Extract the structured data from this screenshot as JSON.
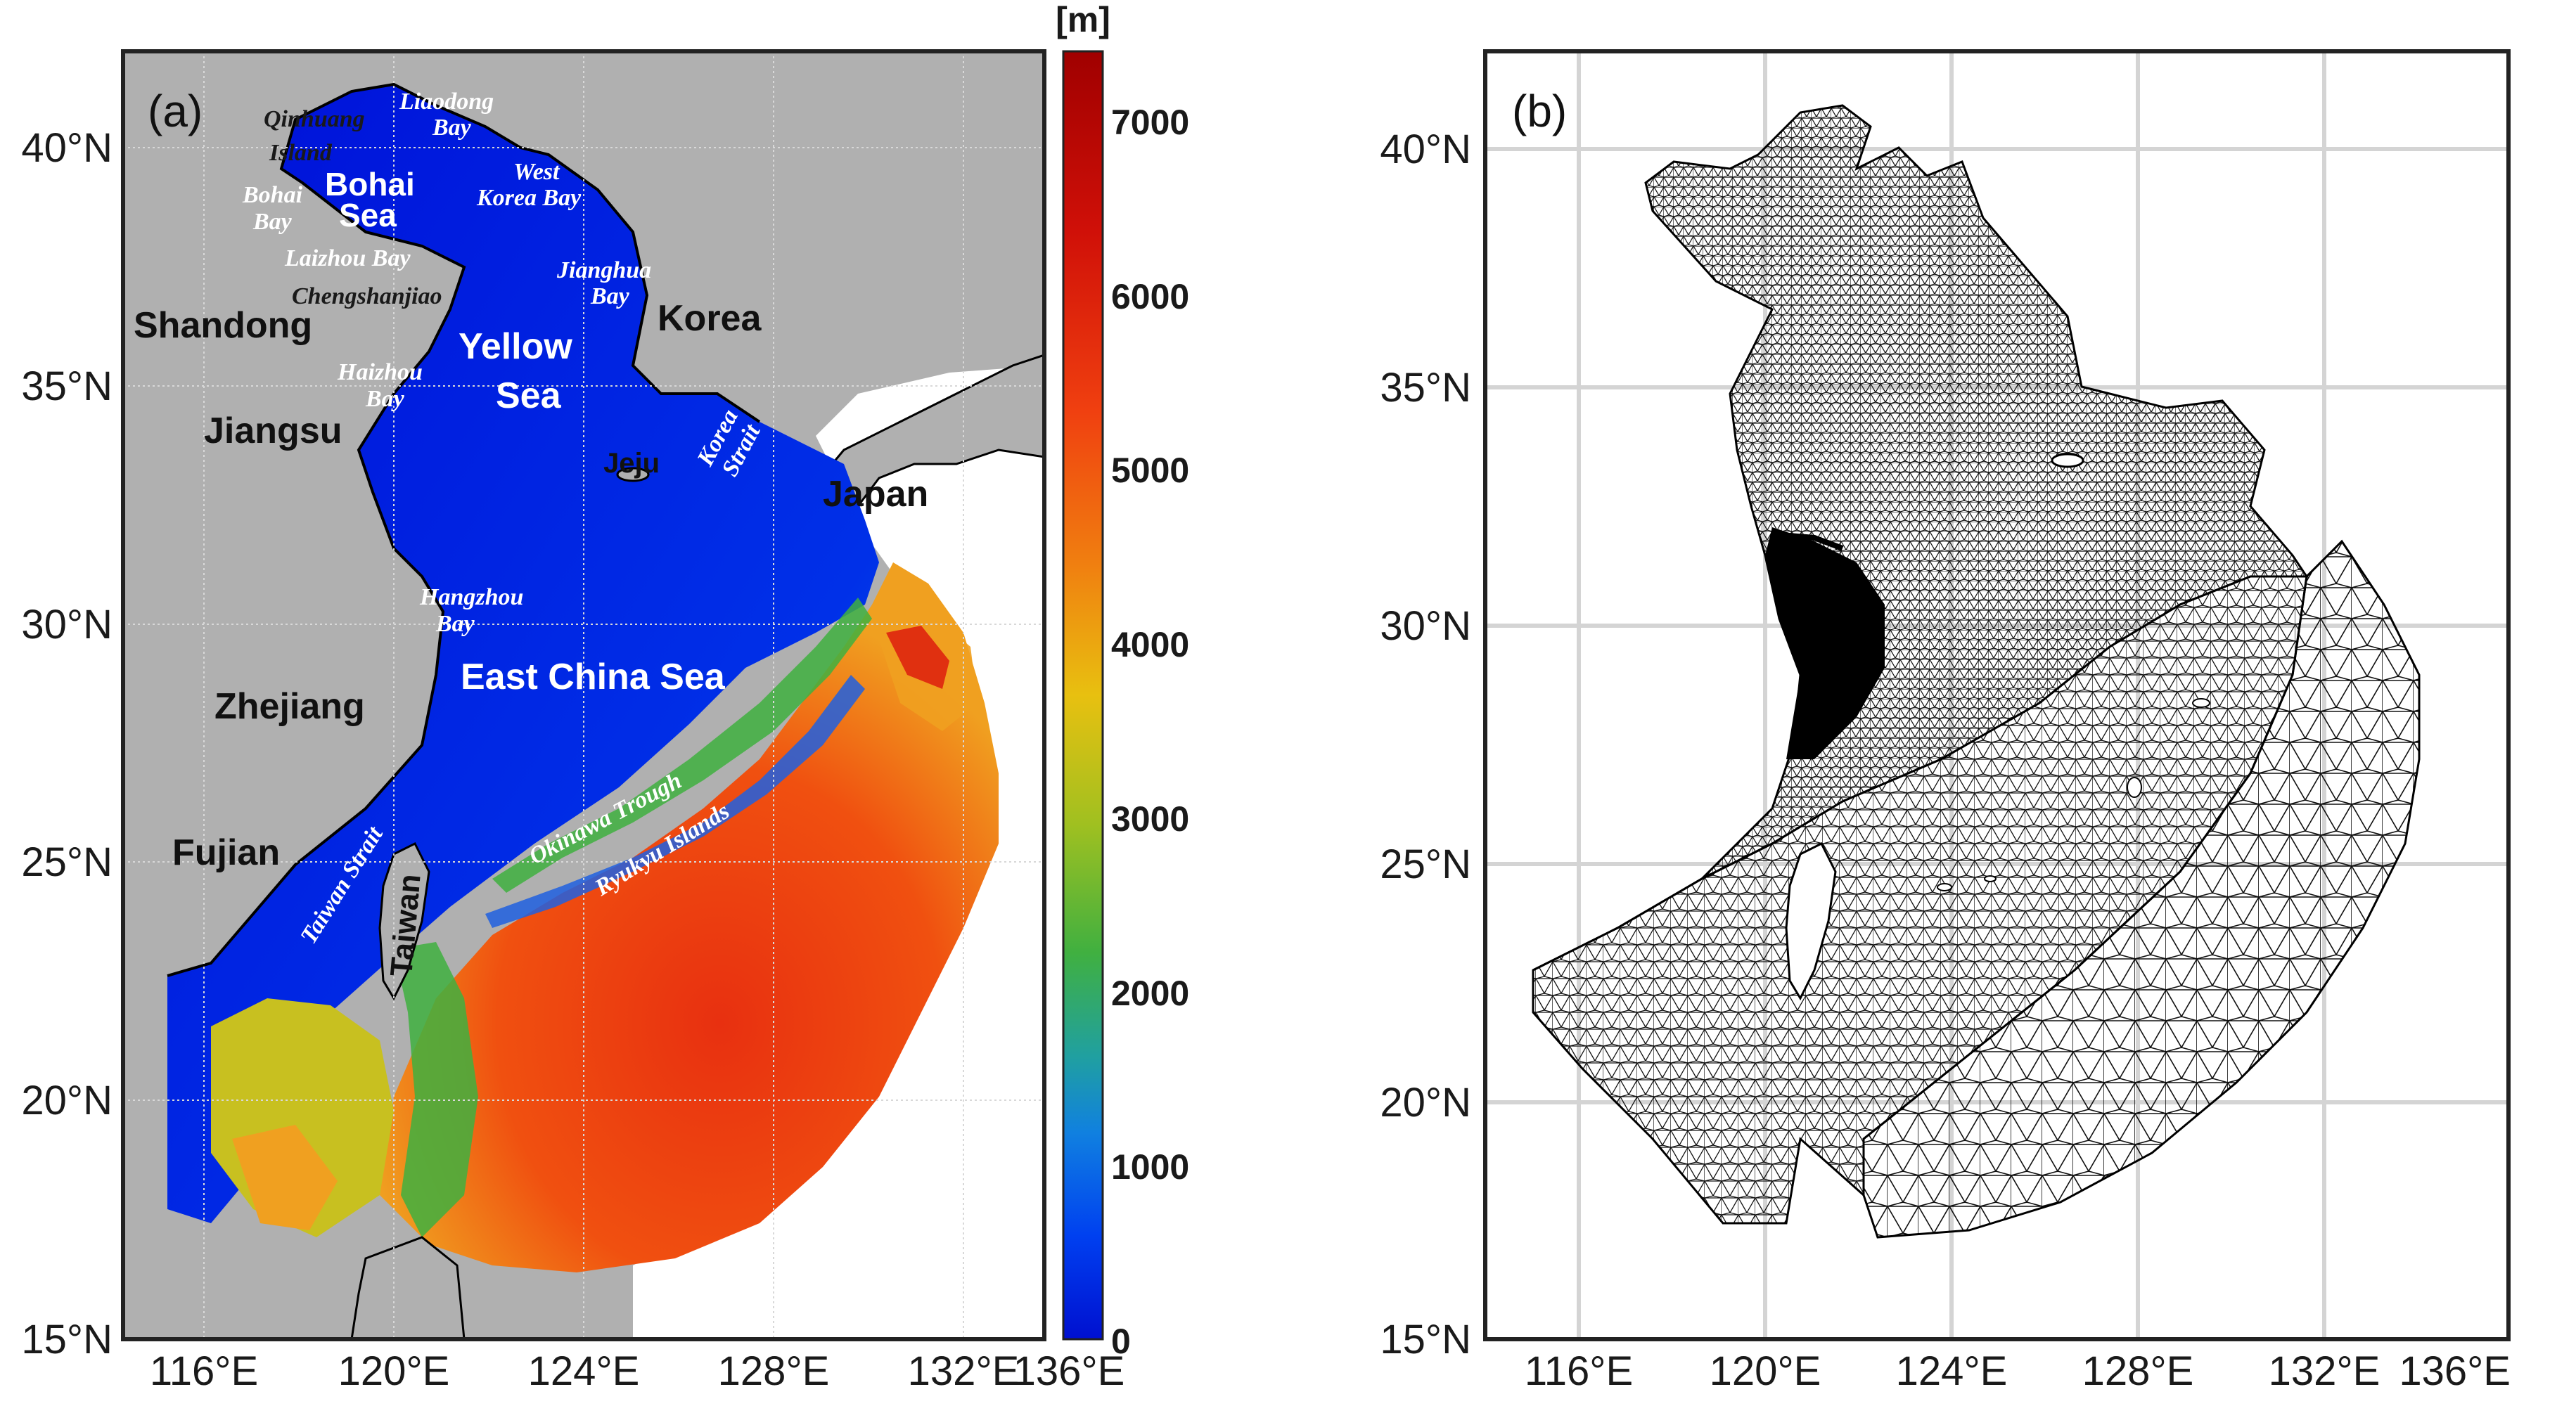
{
  "panels": {
    "a": {
      "label": "(a)"
    },
    "b": {
      "label": "(b)"
    }
  },
  "axes": {
    "lat_ticks": [
      "15°N",
      "20°N",
      "25°N",
      "30°N",
      "35°N",
      "40°N"
    ],
    "lon_ticks": [
      "116°E",
      "120°E",
      "124°E",
      "128°E",
      "132°E",
      "136°E"
    ],
    "lon_range": [
      114.0,
      136.0
    ],
    "lat_range": [
      15.0,
      42.0
    ]
  },
  "colorbar": {
    "unit": "[m]",
    "ticks": [
      "0",
      "1000",
      "2000",
      "3000",
      "4000",
      "5000",
      "6000",
      "7000"
    ],
    "range": [
      0,
      7400
    ],
    "colors": [
      "#0010d0",
      "#0060f0",
      "#20a0c0",
      "#40b040",
      "#c0c020",
      "#f0a010",
      "#f04010",
      "#b00000"
    ]
  },
  "labels": {
    "shandong": "Shandong",
    "jiangsu": "Jiangsu",
    "zhejiang": "Zhejiang",
    "fujian": "Fujian",
    "korea": "Korea",
    "japan": "Japan",
    "taiwan": "Taiwan",
    "jeju": "Jeju",
    "bohai_sea_1": "Bohai",
    "bohai_sea_2": "Sea",
    "yellow_sea_1": "Yellow",
    "yellow_sea_2": "Sea",
    "east_china_sea": "East China Sea",
    "qinhuang_1": "Qinhuang",
    "qinhuang_2": "Island",
    "liaodong_1": "Liaodong",
    "liaodong_2": "Bay",
    "west_korea_1": "West",
    "west_korea_2": "Korea Bay",
    "bohai_bay_1": "Bohai",
    "bohai_bay_2": "Bay",
    "laizhou_bay": "Laizhou Bay",
    "chengshanjiao": "Chengshanjiao",
    "jianghua_1": "Jianghua",
    "jianghua_2": "Bay",
    "haizhou_1": "Haizhou",
    "haizhou_2": "Bay",
    "korea_strait_1": "Korea",
    "korea_strait_2": "Strait",
    "hangzhou_1": "Hangzhou",
    "hangzhou_2": "Bay",
    "okinawa_trough": "Okinawa Trough",
    "ryukyu_islands": "Ryukyu Islands",
    "taiwan_strait": "Taiwan Strait"
  }
}
